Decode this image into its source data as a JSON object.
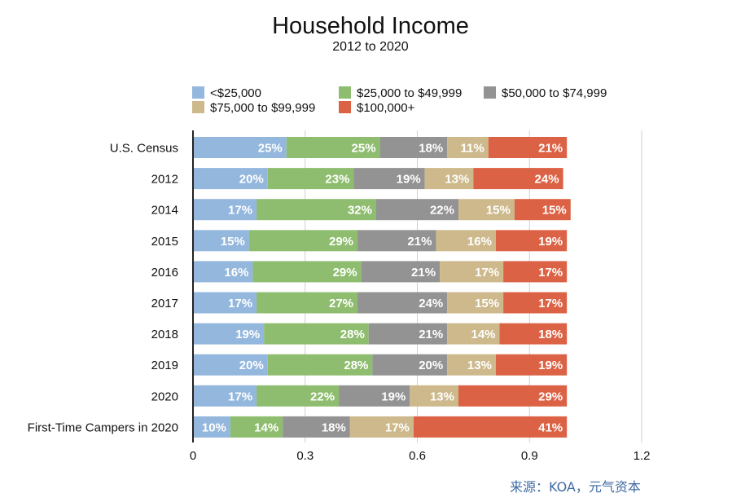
{
  "chart_data": {
    "type": "bar",
    "orientation": "horizontal",
    "stacked": true,
    "title": "Household Income",
    "subtitle": "2012 to 2020",
    "xlim": [
      0,
      1.2
    ],
    "xticks": [
      "0",
      "0.3",
      "0.6",
      "0.9",
      "1.2"
    ],
    "xtick_values": [
      0,
      0.3,
      0.6,
      0.9,
      1.2
    ],
    "grid": "vertical",
    "legend_position": "top",
    "categories": [
      "U.S. Census",
      "2012",
      "2014",
      "2015",
      "2016",
      "2017",
      "2018",
      "2019",
      "2020",
      "First-Time Campers in 2020"
    ],
    "series": [
      {
        "name": "<$25,000",
        "color": "#93b7dd",
        "values": [
          0.25,
          0.2,
          0.17,
          0.15,
          0.16,
          0.17,
          0.19,
          0.2,
          0.17,
          0.1
        ],
        "labels": [
          "25%",
          "20%",
          "17%",
          "15%",
          "16%",
          "17%",
          "19%",
          "20%",
          "17%",
          "10%"
        ]
      },
      {
        "name": "$25,000 to $49,999",
        "color": "#8fbd6f",
        "values": [
          0.25,
          0.23,
          0.32,
          0.29,
          0.29,
          0.27,
          0.28,
          0.28,
          0.22,
          0.14
        ],
        "labels": [
          "25%",
          "23%",
          "32%",
          "29%",
          "29%",
          "27%",
          "28%",
          "28%",
          "22%",
          "14%"
        ]
      },
      {
        "name": "$50,000 to $74,999",
        "color": "#939393",
        "values": [
          0.18,
          0.19,
          0.22,
          0.21,
          0.21,
          0.24,
          0.21,
          0.2,
          0.19,
          0.18
        ],
        "labels": [
          "18%",
          "19%",
          "22%",
          "21%",
          "21%",
          "24%",
          "21%",
          "20%",
          "19%",
          "18%"
        ]
      },
      {
        "name": "$75,000 to $99,999",
        "color": "#cdb98b",
        "values": [
          0.11,
          0.13,
          0.15,
          0.16,
          0.17,
          0.15,
          0.14,
          0.13,
          0.13,
          0.17
        ],
        "labels": [
          "11%",
          "13%",
          "15%",
          "16%",
          "17%",
          "15%",
          "14%",
          "13%",
          "13%",
          "17%"
        ]
      },
      {
        "name": "$100,000+",
        "color": "#dc6245",
        "values": [
          0.21,
          0.24,
          0.15,
          0.19,
          0.17,
          0.17,
          0.18,
          0.19,
          0.29,
          0.41
        ],
        "labels": [
          "21%",
          "24%",
          "15%",
          "19%",
          "17%",
          "17%",
          "18%",
          "19%",
          "29%",
          "41%"
        ]
      }
    ]
  },
  "source": "来源：KOA，元气资本"
}
